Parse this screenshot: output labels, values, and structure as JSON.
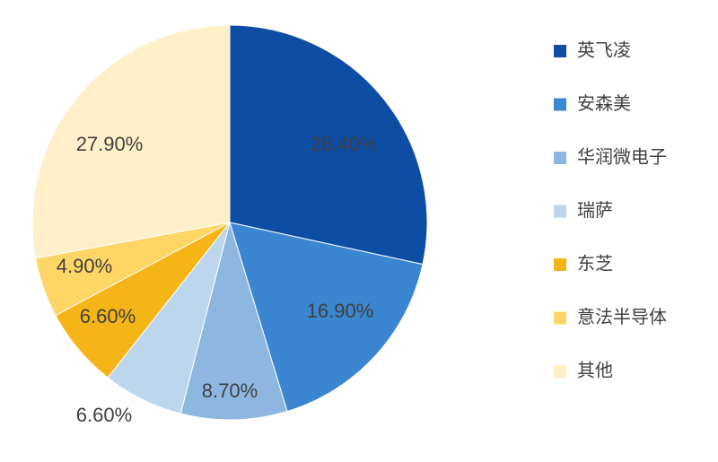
{
  "chart_data": {
    "type": "pie",
    "categories": [
      "英飞凌",
      "安森美",
      "华润微电子",
      "瑞萨",
      "东芝",
      "意法半导体",
      "其他"
    ],
    "values": [
      28.4,
      16.9,
      8.7,
      6.6,
      6.6,
      4.9,
      27.9
    ],
    "labels": [
      "28.40%",
      "16.90%",
      "8.70%",
      "6.60%",
      "6.60%",
      "4.90%",
      "27.90%"
    ],
    "colors": [
      "#0E4DA4",
      "#3A86D0",
      "#8DB7E1",
      "#BCD6EE",
      "#F5B516",
      "#FFD665",
      "#FFF0C9"
    ],
    "label_colors": [
      "#404040",
      "#404040",
      "#404040",
      "#404040",
      "#404040",
      "#404040",
      "#404040"
    ],
    "legend_position": "right",
    "start_angle": "12 o'clock",
    "direction": "clockwise"
  }
}
